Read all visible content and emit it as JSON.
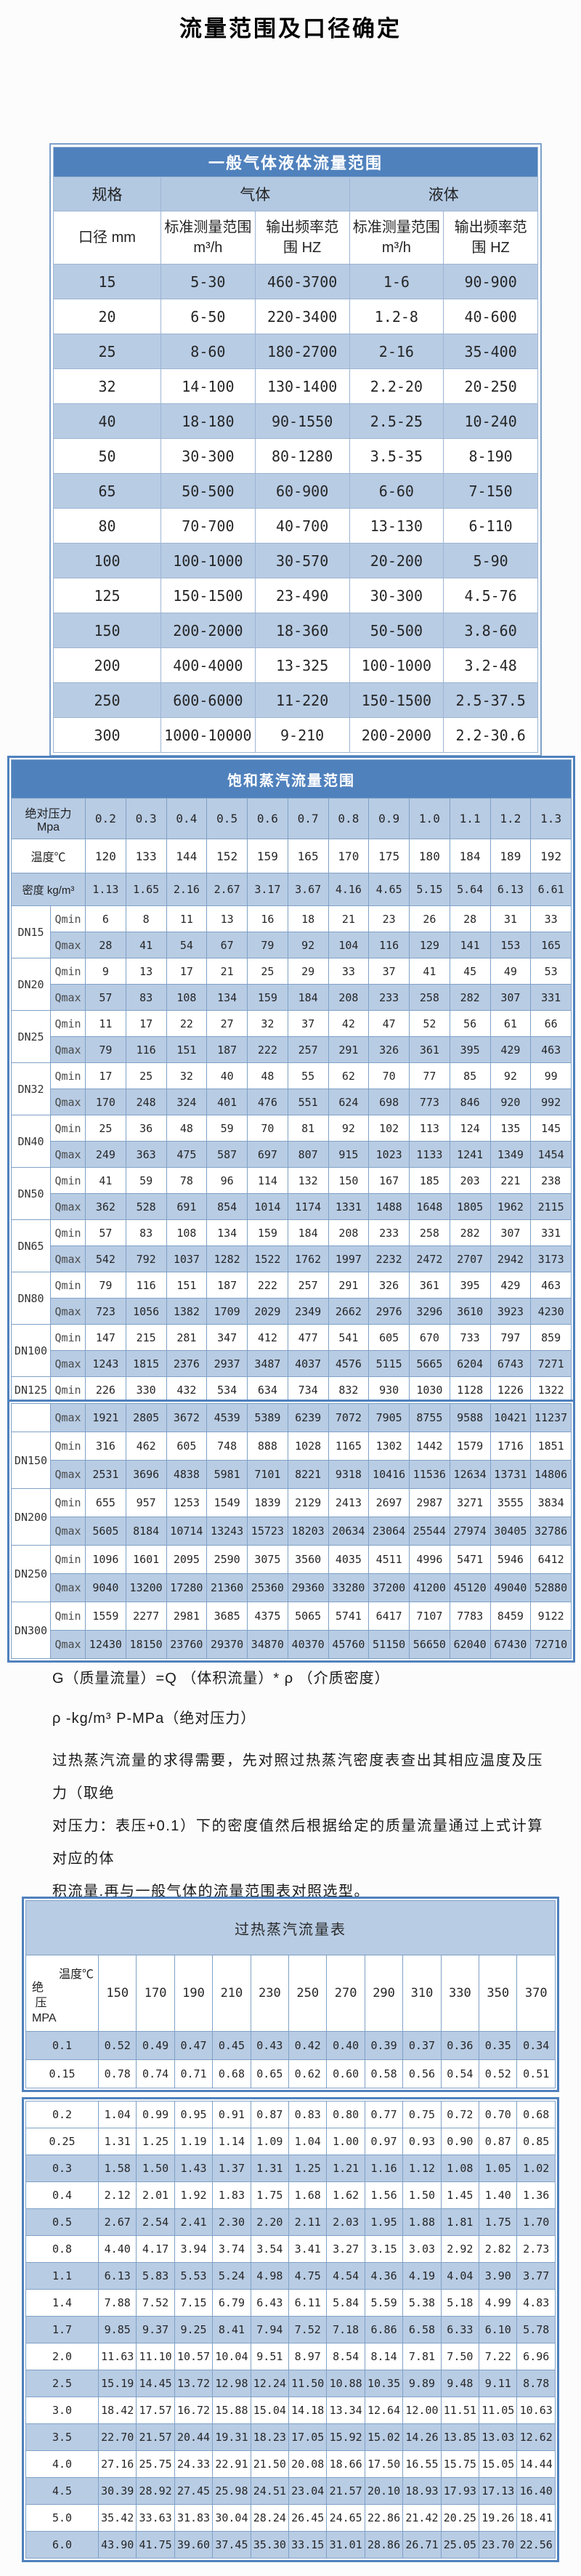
{
  "page_title": "流量范围及口径确定",
  "colors": {
    "header_blue": "#4f81bd",
    "row_blue": "#b8cce4",
    "border_blue": "#4f81bd",
    "grid_blue": "#7fa1c6"
  },
  "table1": {
    "title": "一般气体液体流量范围",
    "group_headers": {
      "spec": "规格",
      "gas": "气体",
      "liquid": "液体"
    },
    "sub_headers": {
      "diameter": "口径 mm",
      "range_label": "标准测量范围",
      "range_unit": "m³/h",
      "freq_line1": "输出频率范",
      "freq_line2": "围 HZ"
    },
    "rows": [
      [
        "15",
        "5-30",
        "460-3700",
        "1-6",
        "90-900"
      ],
      [
        "20",
        "6-50",
        "220-3400",
        "1.2-8",
        "40-600"
      ],
      [
        "25",
        "8-60",
        "180-2700",
        "2-16",
        "35-400"
      ],
      [
        "32",
        "14-100",
        "130-1400",
        "2.2-20",
        "20-250"
      ],
      [
        "40",
        "18-180",
        "90-1550",
        "2.5-25",
        "10-240"
      ],
      [
        "50",
        "30-300",
        "80-1280",
        "3.5-35",
        "8-190"
      ],
      [
        "65",
        "50-500",
        "60-900",
        "6-60",
        "7-150"
      ],
      [
        "80",
        "70-700",
        "40-700",
        "13-130",
        "6-110"
      ],
      [
        "100",
        "100-1000",
        "30-570",
        "20-200",
        "5-90"
      ],
      [
        "125",
        "150-1500",
        "23-490",
        "30-300",
        "4.5-76"
      ],
      [
        "150",
        "200-2000",
        "18-360",
        "50-500",
        "3.8-60"
      ],
      [
        "200",
        "400-4000",
        "13-325",
        "100-1000",
        "3.2-48"
      ],
      [
        "250",
        "600-6000",
        "11-220",
        "150-1500",
        "2.5-37.5"
      ],
      [
        "300",
        "1000-10000",
        "9-210",
        "200-2000",
        "2.2-30.6"
      ]
    ]
  },
  "table2": {
    "title": "饱和蒸汽流量范围",
    "pressure_label": "绝对压力 Mpa",
    "pressures": [
      "0.2",
      "0.3",
      "0.4",
      "0.5",
      "0.6",
      "0.7",
      "0.8",
      "0.9",
      "1.0",
      "1.1",
      "1.2",
      "1.3"
    ],
    "temp_label": "温度℃",
    "temps": [
      "120",
      "133",
      "144",
      "152",
      "159",
      "165",
      "170",
      "175",
      "180",
      "184",
      "189",
      "192"
    ],
    "density_label": "密度 kg/m³",
    "densities": [
      "1.13",
      "1.65",
      "2.16",
      "2.67",
      "3.17",
      "3.67",
      "4.16",
      "4.65",
      "5.15",
      "5.64",
      "6.13",
      "6.61"
    ],
    "qmin_label": "Qmin",
    "qmax_label": "Qmax",
    "box1_groups": [
      {
        "dn": "DN15",
        "qmin": [
          6,
          8,
          11,
          13,
          16,
          18,
          21,
          23,
          26,
          28,
          31,
          33
        ],
        "qmax": [
          28,
          41,
          54,
          67,
          79,
          92,
          104,
          116,
          129,
          141,
          153,
          165
        ]
      },
      {
        "dn": "DN20",
        "qmin": [
          9,
          13,
          17,
          21,
          25,
          29,
          33,
          37,
          41,
          45,
          49,
          53
        ],
        "qmax": [
          57,
          83,
          108,
          134,
          159,
          184,
          208,
          233,
          258,
          282,
          307,
          331
        ]
      },
      {
        "dn": "DN25",
        "qmin": [
          11,
          17,
          22,
          27,
          32,
          37,
          42,
          47,
          52,
          56,
          61,
          66
        ],
        "qmax": [
          79,
          116,
          151,
          187,
          222,
          257,
          291,
          326,
          361,
          395,
          429,
          463
        ]
      },
      {
        "dn": "DN32",
        "qmin": [
          17,
          25,
          32,
          40,
          48,
          55,
          62,
          70,
          77,
          85,
          92,
          99
        ],
        "qmax": [
          170,
          248,
          324,
          401,
          476,
          551,
          624,
          698,
          773,
          846,
          920,
          992
        ]
      },
      {
        "dn": "DN40",
        "qmin": [
          25,
          36,
          48,
          59,
          70,
          81,
          92,
          102,
          113,
          124,
          135,
          145
        ],
        "qmax": [
          249,
          363,
          475,
          587,
          697,
          807,
          915,
          1023,
          1133,
          1241,
          1349,
          1454
        ]
      },
      {
        "dn": "DN50",
        "qmin": [
          41,
          59,
          78,
          96,
          114,
          132,
          150,
          167,
          185,
          203,
          221,
          238
        ],
        "qmax": [
          362,
          528,
          691,
          854,
          1014,
          1174,
          1331,
          1488,
          1648,
          1805,
          1962,
          2115
        ]
      },
      {
        "dn": "DN65",
        "qmin": [
          57,
          83,
          108,
          134,
          159,
          184,
          208,
          233,
          258,
          282,
          307,
          331
        ],
        "qmax": [
          542,
          792,
          1037,
          1282,
          1522,
          1762,
          1997,
          2232,
          2472,
          2707,
          2942,
          3173
        ]
      },
      {
        "dn": "DN80",
        "qmin": [
          79,
          116,
          151,
          187,
          222,
          257,
          291,
          326,
          361,
          395,
          429,
          463
        ],
        "qmax": [
          723,
          1056,
          1382,
          1709,
          2029,
          2349,
          2662,
          2976,
          3296,
          3610,
          3923,
          4230
        ]
      },
      {
        "dn": "DN100",
        "qmin": [
          147,
          215,
          281,
          347,
          412,
          477,
          541,
          605,
          670,
          733,
          797,
          859
        ],
        "qmax": [
          1243,
          1815,
          2376,
          2937,
          3487,
          4037,
          4576,
          5115,
          5665,
          6204,
          6743,
          7271
        ]
      }
    ],
    "box1_tail_row": {
      "dn": "DN125",
      "label": "Qmin",
      "values": [
        226,
        330,
        432,
        534,
        634,
        734,
        832,
        930,
        1030,
        1128,
        1226,
        1322
      ]
    },
    "box2_groups": [
      {
        "dn": "",
        "rows": [
          {
            "label": "Qmax",
            "shade": "b",
            "values": [
              1921,
              2805,
              3672,
              4539,
              5389,
              6239,
              7072,
              7905,
              8755,
              9588,
              10421,
              11237
            ]
          }
        ]
      },
      {
        "dn": "DN150",
        "rows": [
          {
            "label": "Qmin",
            "shade": "w",
            "values": [
              316,
              462,
              605,
              748,
              888,
              1028,
              1165,
              1302,
              1442,
              1579,
              1716,
              1851
            ]
          },
          {
            "label": "Qmax",
            "shade": "b",
            "values": [
              2531,
              3696,
              4838,
              5981,
              7101,
              8221,
              9318,
              10416,
              11536,
              12634,
              13731,
              14806
            ]
          }
        ]
      },
      {
        "dn": "DN200",
        "rows": [
          {
            "label": "Qmin",
            "shade": "w",
            "values": [
              655,
              957,
              1253,
              1549,
              1839,
              2129,
              2413,
              2697,
              2987,
              3271,
              3555,
              3834
            ]
          },
          {
            "label": "Qmax",
            "shade": "b",
            "values": [
              5605,
              8184,
              10714,
              13243,
              15723,
              18203,
              20634,
              23064,
              25544,
              27974,
              30405,
              32786
            ]
          }
        ]
      },
      {
        "dn": "DN250",
        "rows": [
          {
            "label": "Qmin",
            "shade": "w",
            "values": [
              1096,
              1601,
              2095,
              2590,
              3075,
              3560,
              4035,
              4511,
              4996,
              5471,
              5946,
              6412
            ]
          },
          {
            "label": "Qmax",
            "shade": "b",
            "values": [
              9040,
              13200,
              17280,
              21360,
              25360,
              29360,
              33280,
              37200,
              41200,
              45120,
              49040,
              52880
            ]
          }
        ]
      },
      {
        "dn": "DN300",
        "rows": [
          {
            "label": "Qmin",
            "shade": "w",
            "values": [
              1559,
              2277,
              2981,
              3685,
              4375,
              5065,
              5741,
              6417,
              7107,
              7783,
              8459,
              9122
            ]
          },
          {
            "label": "Qmax",
            "shade": "b",
            "values": [
              12430,
              18150,
              23760,
              29370,
              34870,
              40370,
              45760,
              51150,
              56650,
              62040,
              67430,
              72710
            ]
          }
        ]
      }
    ]
  },
  "notes": {
    "line1": "G（质量流量）=Q （体积流量）* ρ （介质密度）",
    "line2": "ρ -kg/m³ P-MPa（绝对压力）",
    "para_lines": [
      "过热蒸汽流量的求得需要，先对照过热蒸汽密度表查出其相应温度及压力（取绝",
      "对压力：表压+0.1）下的密度值然后根据给定的质量流量通过上式计算对应的体",
      "积流量.再与一般气体的流量范围表对照选型。"
    ]
  },
  "table3": {
    "title": "过热蒸汽流量表",
    "corner": {
      "top": "温度℃",
      "left_line1": "绝",
      "left_line2": "压",
      "left_line3": "MPA"
    },
    "temps": [
      "150",
      "170",
      "190",
      "210",
      "230",
      "250",
      "270",
      "290",
      "310",
      "330",
      "350",
      "370"
    ],
    "box1_rows": [
      {
        "pressure": "0.1",
        "shade": "b",
        "values": [
          "0.52",
          "0.49",
          "0.47",
          "0.45",
          "0.43",
          "0.42",
          "0.40",
          "0.39",
          "0.37",
          "0.36",
          "0.35",
          "0.34"
        ]
      },
      {
        "pressure": "0.15",
        "shade": "w",
        "values": [
          "0.78",
          "0.74",
          "0.71",
          "0.68",
          "0.65",
          "0.62",
          "0.60",
          "0.58",
          "0.56",
          "0.54",
          "0.52",
          "0.51"
        ]
      }
    ],
    "box2_rows": [
      {
        "pressure": "0.2",
        "shade": "w",
        "values": [
          "1.04",
          "0.99",
          "0.95",
          "0.91",
          "0.87",
          "0.83",
          "0.80",
          "0.77",
          "0.75",
          "0.72",
          "0.70",
          "0.68"
        ]
      },
      {
        "pressure": "0.25",
        "shade": "w",
        "values": [
          "1.31",
          "1.25",
          "1.19",
          "1.14",
          "1.09",
          "1.04",
          "1.00",
          "0.97",
          "0.93",
          "0.90",
          "0.87",
          "0.85"
        ]
      },
      {
        "pressure": "0.3",
        "shade": "b",
        "values": [
          "1.58",
          "1.50",
          "1.43",
          "1.37",
          "1.31",
          "1.25",
          "1.21",
          "1.16",
          "1.12",
          "1.08",
          "1.05",
          "1.02"
        ]
      },
      {
        "pressure": "0.4",
        "shade": "w",
        "values": [
          "2.12",
          "2.01",
          "1.92",
          "1.83",
          "1.75",
          "1.68",
          "1.62",
          "1.56",
          "1.50",
          "1.45",
          "1.40",
          "1.36"
        ]
      },
      {
        "pressure": "0.5",
        "shade": "b",
        "values": [
          "2.67",
          "2.54",
          "2.41",
          "2.30",
          "2.20",
          "2.11",
          "2.03",
          "1.95",
          "1.88",
          "1.81",
          "1.75",
          "1.70"
        ]
      },
      {
        "pressure": "0.8",
        "shade": "w",
        "values": [
          "4.40",
          "4.17",
          "3.94",
          "3.74",
          "3.54",
          "3.41",
          "3.27",
          "3.15",
          "3.03",
          "2.92",
          "2.82",
          "2.73"
        ]
      },
      {
        "pressure": "1.1",
        "shade": "b",
        "values": [
          "6.13",
          "5.83",
          "5.53",
          "5.24",
          "4.98",
          "4.75",
          "4.54",
          "4.36",
          "4.19",
          "4.04",
          "3.90",
          "3.77"
        ]
      },
      {
        "pressure": "1.4",
        "shade": "w",
        "values": [
          "7.88",
          "7.52",
          "7.15",
          "6.79",
          "6.43",
          "6.11",
          "5.84",
          "5.59",
          "5.38",
          "5.18",
          "4.99",
          "4.83"
        ]
      },
      {
        "pressure": "1.7",
        "shade": "b",
        "values": [
          "9.85",
          "9.37",
          "9.25",
          "8.41",
          "7.94",
          "7.52",
          "7.18",
          "6.86",
          "6.58",
          "6.33",
          "6.10",
          "5.78"
        ]
      },
      {
        "pressure": "2.0",
        "shade": "w",
        "values": [
          "11.63",
          "11.10",
          "10.57",
          "10.04",
          "9.51",
          "8.97",
          "8.54",
          "8.14",
          "7.81",
          "7.50",
          "7.22",
          "6.96"
        ]
      },
      {
        "pressure": "2.5",
        "shade": "b",
        "values": [
          "15.19",
          "14.45",
          "13.72",
          "12.98",
          "12.24",
          "11.50",
          "10.88",
          "10.35",
          "9.89",
          "9.48",
          "9.11",
          "8.78"
        ]
      },
      {
        "pressure": "3.0",
        "shade": "w",
        "values": [
          "18.42",
          "17.57",
          "16.72",
          "15.88",
          "15.04",
          "14.18",
          "13.34",
          "12.64",
          "12.00",
          "11.51",
          "11.05",
          "10.63"
        ]
      },
      {
        "pressure": "3.5",
        "shade": "b",
        "values": [
          "22.70",
          "21.57",
          "20.44",
          "19.31",
          "18.23",
          "17.05",
          "15.92",
          "15.02",
          "14.26",
          "13.85",
          "13.03",
          "12.62"
        ]
      },
      {
        "pressure": "4.0",
        "shade": "w",
        "values": [
          "27.16",
          "25.75",
          "24.33",
          "22.91",
          "21.50",
          "20.08",
          "18.66",
          "17.50",
          "16.55",
          "15.75",
          "15.05",
          "14.44"
        ]
      },
      {
        "pressure": "4.5",
        "shade": "b",
        "values": [
          "30.39",
          "28.92",
          "27.45",
          "25.98",
          "24.51",
          "23.04",
          "21.57",
          "20.10",
          "18.93",
          "17.93",
          "17.13",
          "16.40"
        ]
      },
      {
        "pressure": "5.0",
        "shade": "w",
        "values": [
          "35.42",
          "33.63",
          "31.83",
          "30.04",
          "28.24",
          "26.45",
          "24.65",
          "22.86",
          "21.42",
          "20.25",
          "19.26",
          "18.41"
        ]
      },
      {
        "pressure": "6.0",
        "shade": "b",
        "values": [
          "43.90",
          "41.75",
          "39.60",
          "37.45",
          "35.30",
          "33.15",
          "31.01",
          "28.86",
          "26.71",
          "25.05",
          "23.70",
          "22.56"
        ]
      }
    ]
  }
}
